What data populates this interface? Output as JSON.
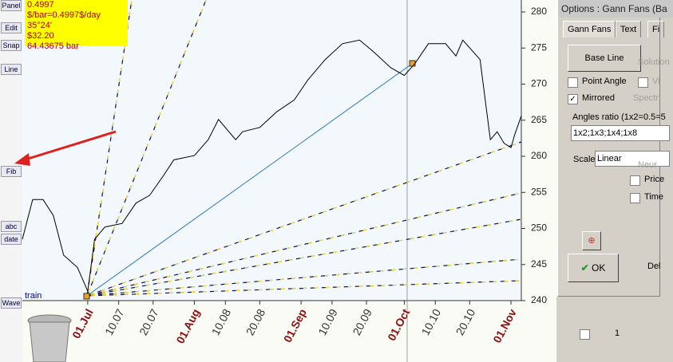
{
  "toolbar": {
    "labels": [
      "Panel",
      "Edit",
      "Snap",
      "Line",
      "Fib",
      "abc",
      "date",
      "Wave"
    ]
  },
  "info_box": {
    "lines": [
      "0.4997 $/bar=0.4997$/day",
      "35°24'",
      "$32.20",
      "64.43675 bar"
    ]
  },
  "chart_data": {
    "type": "line",
    "label": "train",
    "color": "#000000",
    "x": [
      -19,
      -16,
      -13,
      -10,
      -7,
      -3,
      0,
      2,
      5,
      10,
      14,
      18,
      22,
      25,
      31,
      35,
      38,
      43,
      45,
      50,
      55,
      60,
      64,
      69,
      74,
      79,
      83,
      88,
      92,
      95,
      99,
      104,
      107,
      109,
      114,
      117,
      119,
      121,
      123,
      124,
      126
    ],
    "values": [
      248.5,
      254,
      254,
      251.8,
      246.3,
      244.6,
      241.3,
      248.5,
      250.2,
      250.7,
      253.5,
      254.6,
      257.3,
      259.5,
      260.1,
      262.3,
      265.1,
      262.3,
      263.4,
      264,
      266.2,
      267.8,
      270.6,
      273.4,
      275.6,
      276.1,
      274.5,
      272.3,
      271.2,
      272.8,
      275.6,
      275.6,
      273.9,
      276.1,
      273.4,
      262.3,
      263.4,
      261.8,
      261.2,
      262.9,
      265.6
    ],
    "xlim": [
      -19,
      126
    ],
    "ylim": [
      240,
      280
    ],
    "yticks": [
      240,
      245,
      250,
      255,
      260,
      265,
      270,
      275,
      280
    ],
    "xticks": [
      {
        "value": 0,
        "label": "01.Jul"
      },
      {
        "value": 9,
        "label": "10.07"
      },
      {
        "value": 19,
        "label": "20.07"
      },
      {
        "value": 31,
        "label": "01.Aug"
      },
      {
        "value": 40,
        "label": "10.08"
      },
      {
        "value": 50,
        "label": "20.08"
      },
      {
        "value": 62,
        "label": "01.Sep"
      },
      {
        "value": 71,
        "label": "10.09"
      },
      {
        "value": 81,
        "label": "20.09"
      },
      {
        "value": 92,
        "label": "01.Oct"
      },
      {
        "value": 101,
        "label": "10.10"
      },
      {
        "value": 111,
        "label": "20.10"
      },
      {
        "value": 123,
        "label": "01.Nov"
      }
    ]
  },
  "dialog": {
    "title": "Options : Gann Fans (Ba",
    "tabs": [
      "Gann Fans",
      "Text",
      "Fi"
    ],
    "base_line": "Base Line",
    "solution": "Solution",
    "point_angle": {
      "label": "Point Angle",
      "checked": false
    },
    "vi": "Vi",
    "mirrored": {
      "label": "Mirrored",
      "checked": true
    },
    "spectr": "Spectr",
    "angles_label": "Angles ratio (1x2=0.5=5",
    "angles_value": "1x2;1x3;1x4;1x8",
    "scale_label": "Scale",
    "scale_value": "Linear",
    "neur": "Neur",
    "price": "Price",
    "time": "Time",
    "ok": "OK",
    "del": "Del"
  },
  "status": {
    "count": "1"
  }
}
